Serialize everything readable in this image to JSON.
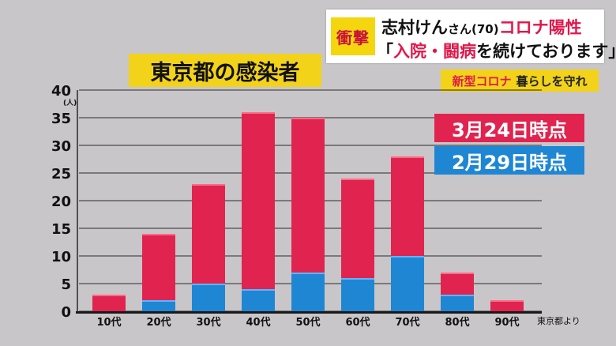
{
  "headline": {
    "tag": "衝撃",
    "line1_name": "志村けん",
    "line1_suffix": "さん(70)",
    "line1_status": "コロナ陽性",
    "line2_open": "「",
    "line2_highlight": "入院・闘病",
    "line2_rest": "を続けております」"
  },
  "subtag": {
    "highlight": "新型コロナ",
    "text": "暮らしを守れ"
  },
  "colors": {
    "march": "#e0244f",
    "feb": "#1f86d4",
    "background": "#c9c6c9",
    "accent_yellow": "#f2d31a"
  },
  "chart_data": {
    "type": "bar",
    "stacked": true,
    "title": "東京都の感染者",
    "ylabel": "(人)",
    "ylim": [
      0,
      40
    ],
    "yticks": [
      0,
      5,
      10,
      15,
      20,
      25,
      30,
      35,
      40
    ],
    "grid": true,
    "categories": [
      "10代",
      "20代",
      "30代",
      "40代",
      "50代",
      "60代",
      "70代",
      "80代",
      "90代"
    ],
    "series": [
      {
        "name": "3月24日時点",
        "color": "#e0244f",
        "values": [
          3,
          14,
          23,
          36,
          35,
          24,
          28,
          7,
          2
        ]
      },
      {
        "name": "2月29日時点",
        "color": "#1f86d4",
        "values": [
          0,
          2,
          5,
          4,
          7,
          6,
          10,
          3,
          0
        ]
      }
    ],
    "legend_position": "right",
    "source": "東京都より"
  }
}
